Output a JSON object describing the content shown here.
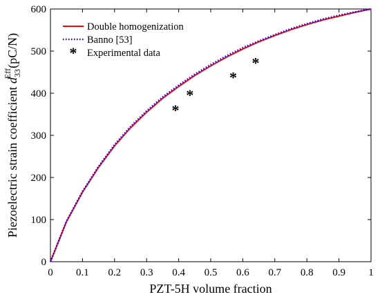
{
  "chart_data": {
    "type": "line",
    "title": "",
    "xlabel": "PZT-5H volume fraction",
    "ylabel": {
      "prefix": "Piezoelectric strain coefficient ",
      "symbol": "d",
      "subscript": "33",
      "superscript": "Eff",
      "suffix": "(pC/N)"
    },
    "xlim": [
      0,
      1
    ],
    "ylim": [
      0,
      600
    ],
    "xticks": [
      0,
      0.1,
      0.2,
      0.3,
      0.4,
      0.5,
      0.6,
      0.7,
      0.8,
      0.9,
      1
    ],
    "xtick_labels": [
      "0",
      "0.1",
      "0.2",
      "0.3",
      "0.4",
      "0.5",
      "0.6",
      "0.7",
      "0.8",
      "0.9",
      "1"
    ],
    "yticks": [
      0,
      100,
      200,
      300,
      400,
      500,
      600
    ],
    "ytick_labels": [
      "0",
      "100",
      "200",
      "300",
      "400",
      "500",
      "600"
    ],
    "grid": false,
    "legend_position": "top-left",
    "series": [
      {
        "name": "Double homogenization",
        "style": "solid",
        "color": "#ff0000",
        "x": [
          0,
          0.05,
          0.1,
          0.15,
          0.2,
          0.25,
          0.3,
          0.35,
          0.4,
          0.45,
          0.5,
          0.55,
          0.6,
          0.65,
          0.7,
          0.75,
          0.8,
          0.85,
          0.9,
          0.95,
          1
        ],
        "y": [
          0,
          95,
          165,
          224,
          275,
          318,
          355,
          388,
          416,
          442,
          465,
          486,
          505,
          522,
          537,
          551,
          563,
          574,
          583,
          592,
          600
        ]
      },
      {
        "name": "Banno [53]",
        "style": "dotted",
        "color": "#0000ff",
        "x": [
          0,
          0.05,
          0.1,
          0.15,
          0.2,
          0.25,
          0.3,
          0.35,
          0.4,
          0.45,
          0.5,
          0.55,
          0.6,
          0.65,
          0.7,
          0.75,
          0.8,
          0.85,
          0.9,
          0.95,
          1
        ],
        "y": [
          0,
          96,
          167,
          226,
          278,
          321,
          358,
          391,
          419,
          445,
          468,
          489,
          508,
          524,
          539,
          553,
          565,
          576,
          585,
          593,
          600
        ]
      },
      {
        "name": "Experimental data",
        "style": "markers",
        "marker": "*",
        "color": "#000000",
        "x": [
          0.39,
          0.435,
          0.57,
          0.64
        ],
        "y": [
          362,
          398,
          440,
          475
        ]
      }
    ]
  }
}
